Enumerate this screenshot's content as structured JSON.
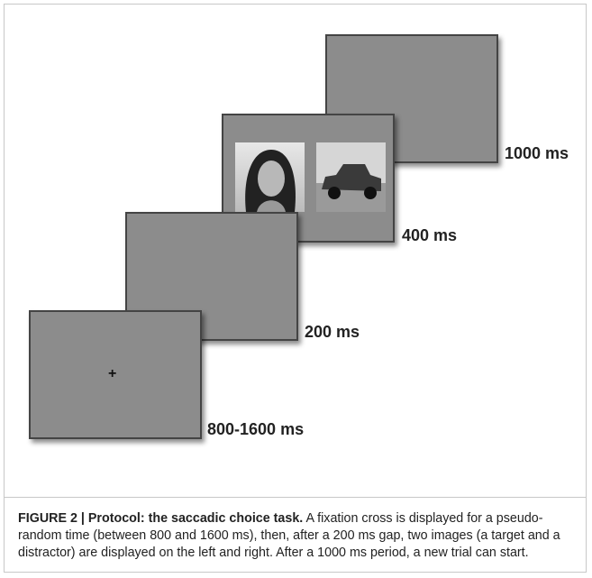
{
  "figure": {
    "screens": [
      {
        "label": "800-1600 ms",
        "content": "+"
      },
      {
        "label": "200 ms"
      },
      {
        "label": "400 ms"
      },
      {
        "label": "1000 ms"
      }
    ]
  },
  "caption": {
    "title": "FIGURE 2 | Protocol: the saccadic choice task.",
    "text": "A fixation cross is displayed for a pseudo-random time (between 800 and 1600 ms), then, after a 200 ms gap, two images (a target and a distractor) are displayed on the left and right. After a 1000 ms period, a new trial can start."
  }
}
